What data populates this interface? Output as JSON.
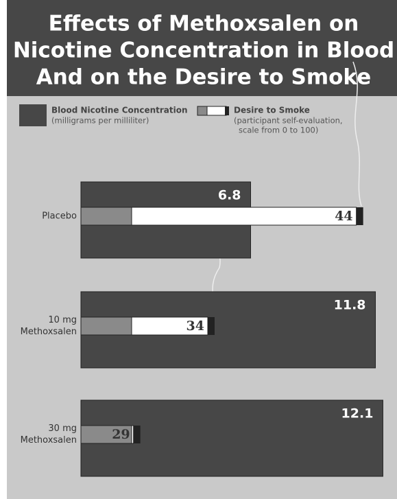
{
  "chart_data": {
    "type": "cigarette-bar",
    "title": [
      "Effects of Methoxsalen on",
      "Nicotine Concentration in Blood",
      "And on the Desire to Smoke"
    ],
    "categories": [
      [
        "Placebo"
      ],
      [
        "10 mg",
        "Methoxsalen"
      ],
      [
        "30 mg",
        "Methoxsalen"
      ]
    ],
    "series": [
      {
        "name": "Blood Nicotine Concentration",
        "note": [
          "(milligrams per milliliter)"
        ],
        "color": "#474747",
        "values": [
          6.8,
          11.8,
          12.1
        ]
      },
      {
        "name": "Desire to Smoke",
        "note": [
          "(participant self-evaluation,",
          "scale from 0 to 100)"
        ],
        "color": "#ffffff",
        "values": [
          44,
          34,
          29
        ],
        "axis": "x2"
      }
    ],
    "xlim": [
      0,
      12.5
    ],
    "x2lim": [
      25,
      46
    ]
  }
}
